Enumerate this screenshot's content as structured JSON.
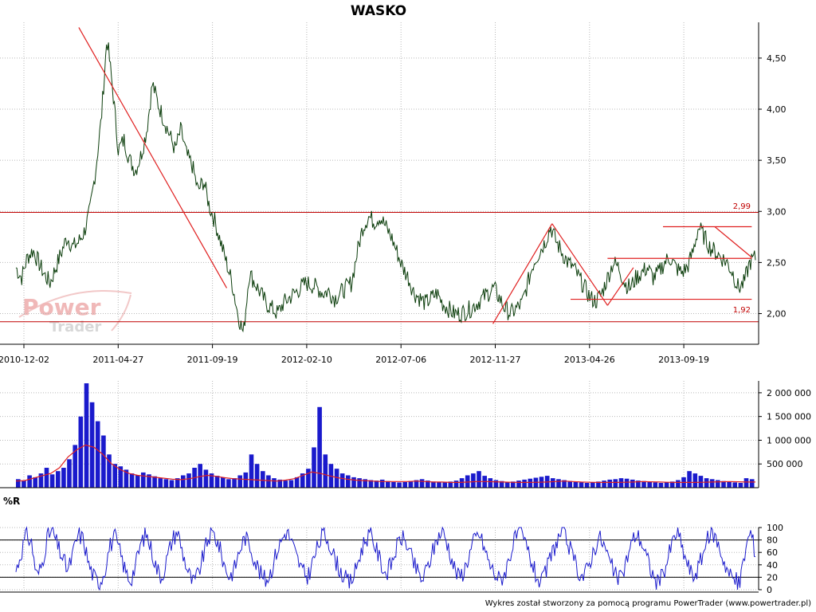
{
  "chart_data": [
    {
      "type": "line",
      "title": "WASKO",
      "x_tick_labels": [
        "2010-12-02",
        "2011-04-27",
        "2011-09-19",
        "2012-02-10",
        "2012-07-06",
        "2012-11-27",
        "2013-04-26",
        "2013-09-19"
      ],
      "y_tick_labels": [
        "2,00",
        "2,50",
        "3,00",
        "3,50",
        "4,00",
        "4,50"
      ],
      "ylim": [
        1.7,
        4.85
      ],
      "annotations": [
        "2,99",
        "1,92"
      ],
      "horizontal_levels": [
        2.99,
        1.92
      ],
      "series": [
        {
          "values": [
            2.45,
            2.35,
            2.55,
            2.62,
            2.5,
            2.38,
            2.3,
            2.45,
            2.6,
            2.75,
            2.65,
            2.7,
            2.8,
            3.0,
            3.4,
            3.9,
            4.7,
            4.2,
            3.6,
            3.7,
            3.5,
            3.4,
            3.55,
            3.8,
            4.25,
            4.05,
            3.9,
            3.75,
            3.6,
            3.8,
            3.55,
            3.45,
            3.2,
            3.3,
            3.05,
            2.9,
            2.7,
            2.5,
            2.3,
            2.0,
            1.8,
            2.4,
            2.3,
            2.2,
            2.1,
            2.05,
            2.0,
            2.1,
            2.15,
            2.2,
            2.25,
            2.3,
            2.28,
            2.25,
            2.2,
            2.22,
            2.15,
            2.2,
            2.25,
            2.3,
            2.6,
            2.85,
            2.95,
            2.9,
            2.95,
            2.85,
            2.75,
            2.6,
            2.45,
            2.35,
            2.2,
            2.15,
            2.1,
            2.15,
            2.2,
            2.1,
            2.05,
            2.0,
            2.0,
            2.02,
            2.05,
            2.1,
            2.15,
            2.2,
            2.25,
            2.15,
            2.05,
            2.0,
            2.05,
            2.1,
            2.3,
            2.5,
            2.6,
            2.7,
            2.85,
            2.7,
            2.6,
            2.5,
            2.45,
            2.35,
            2.25,
            2.15,
            2.12,
            2.2,
            2.35,
            2.5,
            2.45,
            2.3,
            2.25,
            2.35,
            2.4,
            2.45,
            2.35,
            2.4,
            2.5,
            2.55,
            2.45,
            2.4,
            2.45,
            2.6,
            2.85,
            2.75,
            2.65,
            2.6,
            2.55,
            2.5,
            2.4,
            2.25,
            2.3,
            2.5,
            2.55
          ]
        }
      ],
      "trendlines": [
        [
          [
            0.085,
            4.8
          ],
          [
            0.285,
            2.25
          ]
        ],
        [
          [
            0.645,
            1.9
          ],
          [
            0.725,
            2.88
          ]
        ],
        [
          [
            0.725,
            2.88
          ],
          [
            0.8,
            2.08
          ]
        ],
        [
          [
            0.8,
            2.08
          ],
          [
            0.835,
            2.45
          ]
        ],
        [
          [
            0.875,
            2.85
          ],
          [
            0.995,
            2.85
          ]
        ],
        [
          [
            0.945,
            2.85
          ],
          [
            0.995,
            2.55
          ]
        ],
        [
          [
            0.8,
            2.54
          ],
          [
            0.995,
            2.54
          ]
        ],
        [
          [
            0.75,
            2.14
          ],
          [
            0.995,
            2.14
          ]
        ]
      ]
    },
    {
      "type": "bar",
      "title": "",
      "y_tick_labels": [
        "500 000",
        "1 000 000",
        "1 500 000",
        "2 000 000"
      ],
      "ylim": [
        0,
        2250000
      ],
      "values": [
        180000,
        150000,
        260000,
        220000,
        300000,
        420000,
        280000,
        350000,
        420000,
        600000,
        900000,
        1500000,
        2200000,
        1800000,
        1400000,
        1100000,
        700000,
        500000,
        450000,
        380000,
        300000,
        260000,
        320000,
        280000,
        240000,
        200000,
        180000,
        160000,
        200000,
        260000,
        300000,
        420000,
        500000,
        380000,
        300000,
        250000,
        220000,
        180000,
        200000,
        260000,
        320000,
        700000,
        500000,
        350000,
        260000,
        200000,
        170000,
        150000,
        160000,
        220000,
        300000,
        400000,
        850000,
        1700000,
        700000,
        500000,
        400000,
        300000,
        260000,
        220000,
        200000,
        180000,
        160000,
        150000,
        170000,
        140000,
        120000,
        110000,
        120000,
        140000,
        160000,
        180000,
        150000,
        130000,
        120000,
        110000,
        130000,
        150000,
        200000,
        260000,
        300000,
        350000,
        250000,
        200000,
        160000,
        140000,
        120000,
        130000,
        150000,
        170000,
        190000,
        210000,
        230000,
        250000,
        200000,
        180000,
        160000,
        140000,
        120000,
        110000,
        100000,
        110000,
        130000,
        150000,
        170000,
        180000,
        200000,
        190000,
        170000,
        150000,
        140000,
        120000,
        110000,
        100000,
        110000,
        130000,
        160000,
        220000,
        350000,
        300000,
        250000,
        200000,
        180000,
        160000,
        140000,
        120000,
        110000,
        100000,
        200000,
        180000
      ],
      "line": [
        140000,
        150000,
        200000,
        250000,
        300000,
        420000,
        650000,
        800000,
        900000,
        850000,
        700000,
        500000,
        380000,
        300000,
        260000,
        240000,
        220000,
        200000,
        180000,
        170000,
        190000,
        230000,
        260000,
        240000,
        210000,
        190000,
        180000,
        170000,
        160000,
        150000,
        140000,
        160000,
        190000,
        260000,
        330000,
        300000,
        250000,
        210000,
        180000,
        160000,
        150000,
        140000,
        130000,
        130000,
        130000,
        130000,
        140000,
        130000,
        120000,
        120000,
        110000,
        110000,
        120000,
        130000,
        130000,
        125000,
        120000,
        115000,
        110000,
        110000,
        115000,
        120000,
        130000,
        140000,
        130000,
        120000,
        115000,
        110000,
        110000,
        110000,
        115000,
        120000,
        130000,
        125000,
        120000,
        115000,
        110000,
        110000,
        110000,
        115000,
        120000,
        125000,
        130000,
        125000,
        120000,
        120000
      ]
    },
    {
      "type": "line",
      "title": "%R",
      "y_tick_labels": [
        "0",
        "20",
        "40",
        "60",
        "80",
        "100"
      ],
      "ylim": [
        0,
        100
      ],
      "reference_lines": [
        20,
        80
      ],
      "series": [
        {
          "values": [
            30,
            60,
            90,
            75,
            20,
            40,
            85,
            95,
            70,
            50,
            30,
            60,
            90,
            80,
            40,
            20,
            10,
            30,
            70,
            85,
            60,
            30,
            15,
            40,
            75,
            90,
            65,
            35,
            20,
            50,
            80,
            95,
            60,
            30,
            10,
            25,
            55,
            85,
            90,
            70,
            40,
            20,
            35,
            65,
            85,
            70,
            45,
            25,
            15,
            30,
            60,
            80,
            95,
            75,
            50,
            30,
            20,
            45,
            70,
            90,
            80,
            55,
            35,
            20,
            10,
            25,
            55,
            80,
            90,
            70,
            45,
            25,
            40,
            65,
            85,
            75,
            50,
            30,
            15,
            35,
            60,
            85,
            95,
            70,
            40,
            20,
            30,
            55,
            80,
            90,
            65,
            40,
            25,
            15,
            30,
            60,
            85,
            90,
            70,
            45,
            20,
            10,
            35,
            60,
            80,
            95,
            75,
            50,
            30,
            20,
            40,
            65,
            85,
            70,
            45,
            25,
            15,
            40,
            70,
            90,
            80,
            55,
            30,
            10,
            20,
            45,
            75,
            95,
            65,
            40,
            20,
            35,
            60,
            85,
            90,
            70,
            45,
            25,
            15,
            10,
            60,
            95,
            60
          ]
        }
      ]
    }
  ],
  "watermark": {
    "line1": "Power",
    "line2": "Trader"
  },
  "footer": "Wykres został stworzony za pomocą programu PowerTrader (www.powertrader.pl)",
  "colors": {
    "price_line": "#0b3d0b",
    "trend_line": "#e02020",
    "level_line": "#c00000",
    "volume_bar": "#1a1acc",
    "volume_avg": "#e02020",
    "wr_line": "#1a1acc",
    "grid": "#b8b8b8"
  }
}
